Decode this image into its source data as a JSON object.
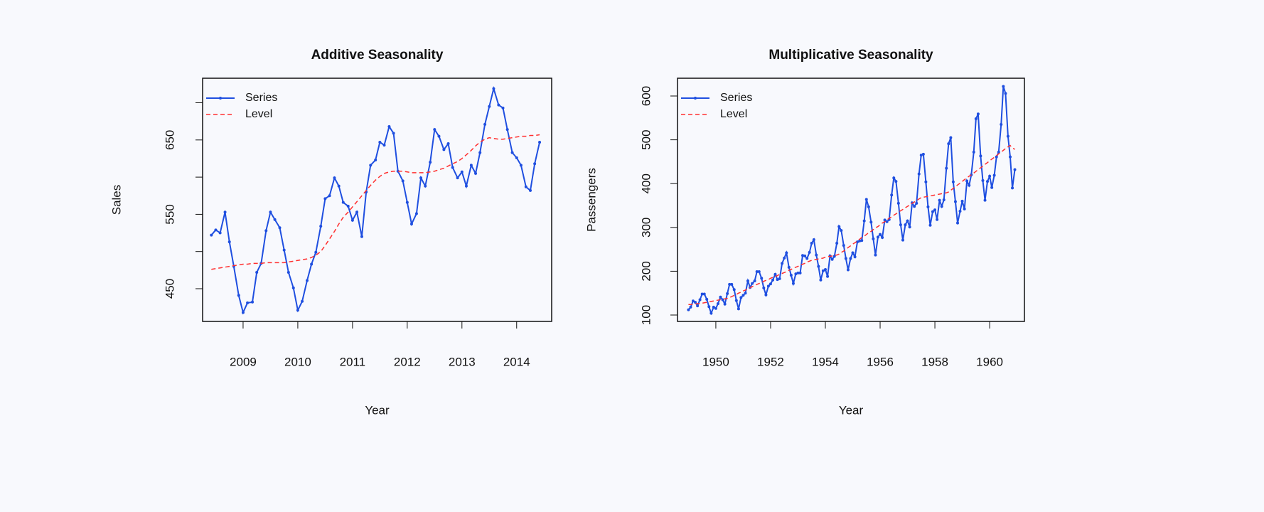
{
  "chart_data": [
    {
      "type": "line",
      "title": "Additive Seasonality",
      "x_label": "Year",
      "y_label": "Sales",
      "x": [
        2008.42,
        2008.5,
        2008.58,
        2008.67,
        2008.75,
        2008.83,
        2008.92,
        2009,
        2009.08,
        2009.17,
        2009.25,
        2009.33,
        2009.42,
        2009.5,
        2009.58,
        2009.67,
        2009.75,
        2009.83,
        2009.92,
        2010,
        2010.08,
        2010.17,
        2010.25,
        2010.33,
        2010.42,
        2010.5,
        2010.58,
        2010.67,
        2010.75,
        2010.83,
        2010.92,
        2011,
        2011.08,
        2011.17,
        2011.25,
        2011.33,
        2011.42,
        2011.5,
        2011.58,
        2011.67,
        2011.75,
        2011.83,
        2011.92,
        2012,
        2012.08,
        2012.17,
        2012.25,
        2012.33,
        2012.42,
        2012.5,
        2012.58,
        2012.67,
        2012.75,
        2012.83,
        2012.92,
        2013,
        2013.08,
        2013.17,
        2013.25,
        2013.33,
        2013.42,
        2013.5,
        2013.58,
        2013.67,
        2013.75,
        2013.83,
        2013.92,
        2014,
        2014.08,
        2014.17,
        2014.25,
        2014.33,
        2014.42
      ],
      "series": [
        {
          "name": "Series",
          "color": "#1f4fe0",
          "dash": false,
          "markers": true,
          "values": [
            522,
            529,
            525,
            553,
            513,
            480,
            441,
            418,
            431,
            432,
            472,
            484,
            528,
            553,
            543,
            532,
            502,
            472,
            451,
            421,
            433,
            461,
            483,
            499,
            534,
            571,
            575,
            599,
            588,
            566,
            561,
            542,
            553,
            520,
            580,
            616,
            623,
            647,
            643,
            668,
            659,
            608,
            595,
            566,
            537,
            551,
            599,
            588,
            620,
            664,
            655,
            637,
            645,
            613,
            599,
            607,
            588,
            616,
            605,
            633,
            671,
            695,
            719,
            697,
            693,
            664,
            633,
            626,
            616,
            587,
            582,
            618,
            647
          ]
        },
        {
          "name": "Level",
          "color": "#ff3030",
          "dash": true,
          "markers": false,
          "values": [
            476,
            477,
            478,
            479,
            480,
            481,
            482,
            483,
            483,
            484,
            484,
            484,
            485,
            485,
            485,
            485,
            485,
            486,
            487,
            488,
            489,
            490,
            492,
            495,
            500,
            508,
            517,
            527,
            537,
            546,
            553,
            560,
            567,
            575,
            582,
            589,
            596,
            601,
            605,
            607,
            608,
            608,
            608,
            607,
            606,
            606,
            606,
            606,
            607,
            608,
            610,
            612,
            615,
            618,
            621,
            625,
            630,
            636,
            642,
            647,
            651,
            653,
            652,
            651,
            651,
            652,
            653,
            654,
            655,
            655,
            656,
            656,
            657
          ]
        }
      ],
      "xlim": [
        2008.26,
        2014.64
      ],
      "xticks": [
        2009,
        2010,
        2011,
        2012,
        2013,
        2014
      ],
      "ylim": [
        406,
        733
      ],
      "yticks": [
        450,
        550,
        650
      ],
      "yminor_ticks": [
        500,
        600,
        700
      ],
      "legend": "topleft"
    },
    {
      "type": "line",
      "title": "Multiplicative Seasonality",
      "x_label": "Year",
      "y_label": "Passengers",
      "x": [
        1949,
        1949.08,
        1949.17,
        1949.25,
        1949.33,
        1949.42,
        1949.5,
        1949.58,
        1949.67,
        1949.75,
        1949.83,
        1949.92,
        1950,
        1950.08,
        1950.17,
        1950.25,
        1950.33,
        1950.42,
        1950.5,
        1950.58,
        1950.67,
        1950.75,
        1950.83,
        1950.92,
        1951,
        1951.08,
        1951.17,
        1951.25,
        1951.33,
        1951.42,
        1951.5,
        1951.58,
        1951.67,
        1951.75,
        1951.83,
        1951.92,
        1952,
        1952.08,
        1952.17,
        1952.25,
        1952.33,
        1952.42,
        1952.5,
        1952.58,
        1952.67,
        1952.75,
        1952.83,
        1952.92,
        1953,
        1953.08,
        1953.17,
        1953.25,
        1953.33,
        1953.42,
        1953.5,
        1953.58,
        1953.67,
        1953.75,
        1953.83,
        1953.92,
        1954,
        1954.08,
        1954.17,
        1954.25,
        1954.33,
        1954.42,
        1954.5,
        1954.58,
        1954.67,
        1954.75,
        1954.83,
        1954.92,
        1955,
        1955.08,
        1955.17,
        1955.25,
        1955.33,
        1955.42,
        1955.5,
        1955.58,
        1955.67,
        1955.75,
        1955.83,
        1955.92,
        1956,
        1956.08,
        1956.17,
        1956.25,
        1956.33,
        1956.42,
        1956.5,
        1956.58,
        1956.67,
        1956.75,
        1956.83,
        1956.92,
        1957,
        1957.08,
        1957.17,
        1957.25,
        1957.33,
        1957.42,
        1957.5,
        1957.58,
        1957.67,
        1957.75,
        1957.83,
        1957.92,
        1958,
        1958.08,
        1958.17,
        1958.25,
        1958.33,
        1958.42,
        1958.5,
        1958.58,
        1958.67,
        1958.75,
        1958.83,
        1958.92,
        1959,
        1959.08,
        1959.17,
        1959.25,
        1959.33,
        1959.42,
        1959.5,
        1959.58,
        1959.67,
        1959.75,
        1959.83,
        1959.92,
        1960,
        1960.08,
        1960.17,
        1960.25,
        1960.33,
        1960.42,
        1960.5,
        1960.58,
        1960.67,
        1960.75,
        1960.83,
        1960.92
      ],
      "series": [
        {
          "name": "Series",
          "color": "#1f4fe0",
          "dash": false,
          "markers": true,
          "values": [
            112,
            118,
            132,
            129,
            121,
            135,
            148,
            148,
            136,
            119,
            104,
            118,
            115,
            126,
            141,
            135,
            125,
            149,
            170,
            170,
            158,
            133,
            114,
            140,
            145,
            150,
            178,
            163,
            172,
            178,
            199,
            199,
            184,
            162,
            146,
            166,
            171,
            180,
            193,
            181,
            183,
            218,
            230,
            242,
            209,
            191,
            172,
            194,
            196,
            196,
            236,
            235,
            229,
            243,
            264,
            272,
            237,
            211,
            180,
            201,
            204,
            188,
            235,
            227,
            234,
            264,
            302,
            293,
            259,
            229,
            203,
            229,
            242,
            233,
            267,
            269,
            270,
            315,
            364,
            347,
            312,
            274,
            237,
            278,
            284,
            277,
            317,
            313,
            318,
            374,
            413,
            405,
            355,
            306,
            271,
            306,
            315,
            301,
            356,
            348,
            355,
            422,
            465,
            467,
            404,
            347,
            305,
            336,
            340,
            318,
            362,
            348,
            363,
            435,
            491,
            505,
            404,
            359,
            310,
            337,
            360,
            342,
            406,
            396,
            420,
            472,
            548,
            559,
            463,
            407,
            362,
            405,
            417,
            391,
            419,
            461,
            472,
            535,
            622,
            606,
            508,
            461,
            390,
            432
          ]
        },
        {
          "name": "Level",
          "color": "#ff3030",
          "dash": true,
          "markers": false,
          "values": [
            124,
            124,
            125,
            125,
            126,
            126,
            127,
            128,
            129,
            130,
            131,
            132,
            133,
            134,
            135,
            136,
            137,
            138,
            140,
            142,
            145,
            147,
            150,
            152,
            155,
            157,
            160,
            162,
            165,
            167,
            170,
            172,
            174,
            177,
            179,
            181,
            184,
            186,
            188,
            190,
            193,
            195,
            197,
            199,
            202,
            204,
            207,
            209,
            211,
            214,
            216,
            218,
            221,
            223,
            225,
            226,
            227,
            228,
            229,
            230,
            232,
            233,
            234,
            235,
            236,
            237,
            239,
            243,
            246,
            250,
            254,
            258,
            262,
            265,
            269,
            273,
            277,
            280,
            284,
            288,
            291,
            295,
            299,
            302,
            306,
            310,
            313,
            317,
            321,
            324,
            328,
            331,
            335,
            338,
            341,
            345,
            348,
            351,
            355,
            358,
            361,
            365,
            368,
            369,
            370,
            371,
            372,
            373,
            374,
            375,
            376,
            377,
            378,
            379,
            381,
            385,
            389,
            393,
            397,
            401,
            405,
            409,
            413,
            417,
            420,
            424,
            428,
            432,
            436,
            440,
            444,
            448,
            452,
            456,
            460,
            464,
            468,
            472,
            476,
            480,
            484,
            487,
            482,
            478
          ]
        }
      ],
      "xlim": [
        1948.6,
        1961.27
      ],
      "xticks": [
        1950,
        1952,
        1954,
        1956,
        1958,
        1960
      ],
      "ylim": [
        85.4,
        640.6
      ],
      "yticks": [
        100,
        200,
        300,
        400,
        500,
        600
      ],
      "legend": "topleft"
    }
  ]
}
